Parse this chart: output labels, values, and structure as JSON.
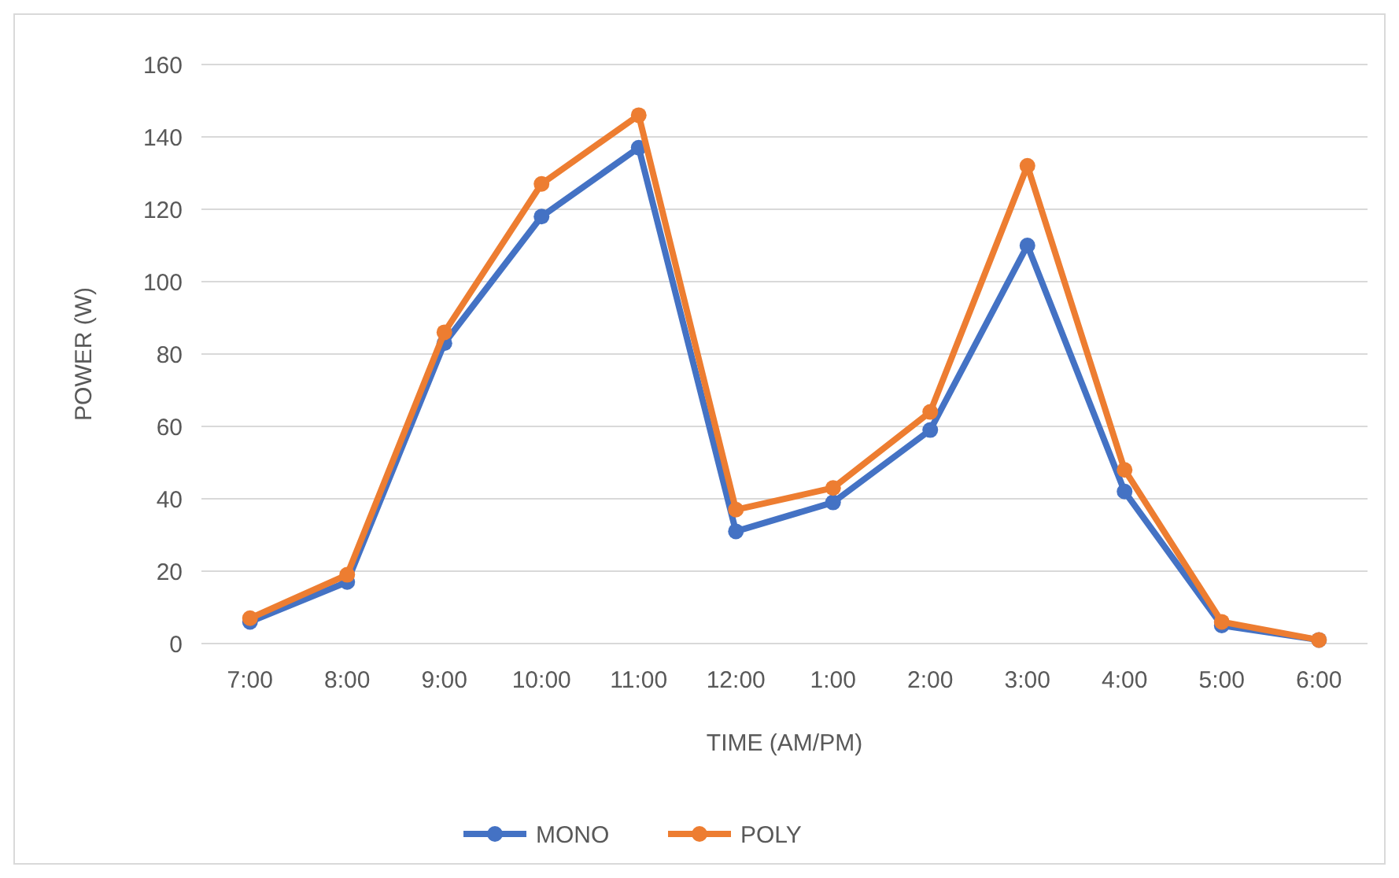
{
  "chart_data": {
    "type": "line",
    "xlabel": "TIME (AM/PM)",
    "ylabel": "POWER (W)",
    "categories": [
      "7:00",
      "8:00",
      "9:00",
      "10:00",
      "11:00",
      "12:00",
      "1:00",
      "2:00",
      "3:00",
      "4:00",
      "5:00",
      "6:00"
    ],
    "series": [
      {
        "name": "MONO",
        "color": "#4472c4",
        "values": [
          6,
          17,
          83,
          118,
          137,
          31,
          39,
          59,
          110,
          42,
          5,
          1
        ]
      },
      {
        "name": "POLY",
        "color": "#ed7d31",
        "values": [
          7,
          19,
          86,
          127,
          146,
          37,
          43,
          64,
          132,
          48,
          6,
          1
        ]
      }
    ],
    "ylim": [
      0,
      160
    ],
    "yticks": [
      0,
      20,
      40,
      60,
      80,
      100,
      120,
      140,
      160
    ],
    "grid": "y",
    "legend": "bottom",
    "marker": "circle",
    "line_style": "solid"
  }
}
